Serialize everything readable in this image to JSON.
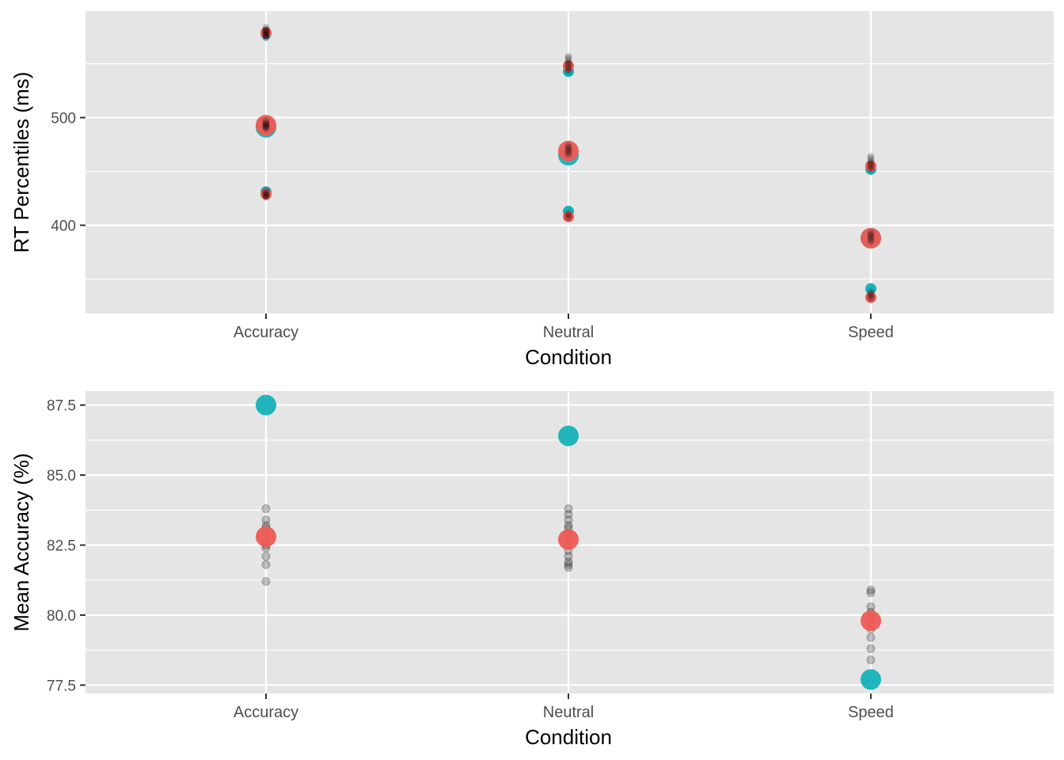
{
  "chart_data": [
    {
      "type": "scatter",
      "xlabel": "Condition",
      "ylabel": "RT Percentiles (ms)",
      "categories": [
        "Accuracy",
        "Neutral",
        "Speed"
      ],
      "ylim": [
        318,
        599
      ],
      "yticks": [
        400,
        500
      ],
      "grid": true,
      "legend": "none",
      "colors": {
        "panel": "#e5e5e5",
        "grid": "#ffffff",
        "teal": "#17b1b8",
        "red": "#ef5a55",
        "black": "#000000"
      },
      "series": [
        {
          "color": "teal",
          "size": "small",
          "points": [
            [
              "Accuracy",
              578
            ],
            [
              "Accuracy",
              431
            ],
            [
              "Neutral",
              543
            ],
            [
              "Neutral",
              413
            ],
            [
              "Speed",
              452
            ],
            [
              "Speed",
              341
            ]
          ]
        },
        {
          "color": "teal",
          "size": "large",
          "points": [
            [
              "Accuracy",
              491
            ],
            [
              "Neutral",
              465
            ],
            [
              "Speed",
              388
            ]
          ]
        },
        {
          "color": "red",
          "size": "large",
          "points": [
            [
              "Accuracy",
              493
            ],
            [
              "Neutral",
              469
            ],
            [
              "Speed",
              388
            ]
          ]
        },
        {
          "color": "red",
          "size": "small",
          "points": [
            [
              "Accuracy",
              579
            ],
            [
              "Accuracy",
              429
            ],
            [
              "Neutral",
              548
            ],
            [
              "Neutral",
              408
            ],
            [
              "Speed",
              455
            ],
            [
              "Speed",
              333
            ]
          ]
        },
        {
          "color": "black",
          "size": "tiny",
          "points": [
            [
              "Accuracy",
              584
            ],
            [
              "Accuracy",
              582
            ],
            [
              "Accuracy",
              581
            ],
            [
              "Accuracy",
              580
            ],
            [
              "Accuracy",
              579
            ],
            [
              "Accuracy",
              578
            ],
            [
              "Accuracy",
              577
            ],
            [
              "Accuracy",
              576
            ],
            [
              "Accuracy",
              575
            ],
            [
              "Accuracy",
              574
            ],
            [
              "Accuracy",
              497
            ],
            [
              "Accuracy",
              495
            ],
            [
              "Accuracy",
              494
            ],
            [
              "Accuracy",
              493
            ],
            [
              "Accuracy",
              492
            ],
            [
              "Accuracy",
              491
            ],
            [
              "Accuracy",
              490
            ],
            [
              "Accuracy",
              432
            ],
            [
              "Accuracy",
              430
            ],
            [
              "Accuracy",
              429
            ],
            [
              "Accuracy",
              428
            ],
            [
              "Accuracy",
              427
            ],
            [
              "Accuracy",
              426
            ],
            [
              "Neutral",
              557
            ],
            [
              "Neutral",
              555
            ],
            [
              "Neutral",
              553
            ],
            [
              "Neutral",
              551
            ],
            [
              "Neutral",
              549
            ],
            [
              "Neutral",
              547
            ],
            [
              "Neutral",
              545
            ],
            [
              "Neutral",
              543
            ],
            [
              "Neutral",
              474
            ],
            [
              "Neutral",
              472
            ],
            [
              "Neutral",
              470
            ],
            [
              "Neutral",
              468
            ],
            [
              "Neutral",
              466
            ],
            [
              "Neutral",
              411
            ],
            [
              "Neutral",
              409
            ],
            [
              "Neutral",
              407
            ],
            [
              "Speed",
              464
            ],
            [
              "Speed",
              462
            ],
            [
              "Speed",
              460
            ],
            [
              "Speed",
              458
            ],
            [
              "Speed",
              456
            ],
            [
              "Speed",
              454
            ],
            [
              "Speed",
              452
            ],
            [
              "Speed",
              393
            ],
            [
              "Speed",
              391
            ],
            [
              "Speed",
              389
            ],
            [
              "Speed",
              387
            ],
            [
              "Speed",
              385
            ],
            [
              "Speed",
              338
            ],
            [
              "Speed",
              336
            ],
            [
              "Speed",
              334
            ],
            [
              "Speed",
              332
            ]
          ]
        }
      ]
    },
    {
      "type": "scatter",
      "xlabel": "Condition",
      "ylabel": "Mean Accuracy (%)",
      "categories": [
        "Accuracy",
        "Neutral",
        "Speed"
      ],
      "ylim": [
        77.2,
        88.0
      ],
      "yticks": [
        77.5,
        80.0,
        82.5,
        85.0,
        87.5
      ],
      "yticklabels": [
        "77.5",
        "80.0",
        "82.5",
        "85.0",
        "87.5"
      ],
      "grid": true,
      "legend": "none",
      "colors": {
        "panel": "#e5e5e5",
        "grid": "#ffffff",
        "teal": "#17b1b8",
        "red": "#ef5a55",
        "black": "#000000"
      },
      "series": [
        {
          "color": "black",
          "size": "medium",
          "points": [
            [
              "Accuracy",
              83.8
            ],
            [
              "Accuracy",
              83.4
            ],
            [
              "Accuracy",
              83.2
            ],
            [
              "Accuracy",
              83.1
            ],
            [
              "Accuracy",
              82.9
            ],
            [
              "Accuracy",
              82.6
            ],
            [
              "Accuracy",
              82.5
            ],
            [
              "Accuracy",
              82.4
            ],
            [
              "Accuracy",
              82.1
            ],
            [
              "Accuracy",
              81.8
            ],
            [
              "Accuracy",
              81.2
            ],
            [
              "Neutral",
              83.8
            ],
            [
              "Neutral",
              83.6
            ],
            [
              "Neutral",
              83.4
            ],
            [
              "Neutral",
              83.2
            ],
            [
              "Neutral",
              83.1
            ],
            [
              "Neutral",
              82.9
            ],
            [
              "Neutral",
              82.7
            ],
            [
              "Neutral",
              82.5
            ],
            [
              "Neutral",
              82.3
            ],
            [
              "Neutral",
              82.1
            ],
            [
              "Neutral",
              81.9
            ],
            [
              "Neutral",
              81.8
            ],
            [
              "Neutral",
              81.7
            ],
            [
              "Speed",
              80.9
            ],
            [
              "Speed",
              80.8
            ],
            [
              "Speed",
              80.3
            ],
            [
              "Speed",
              80.1
            ],
            [
              "Speed",
              79.9
            ],
            [
              "Speed",
              79.7
            ],
            [
              "Speed",
              79.5
            ],
            [
              "Speed",
              79.2
            ],
            [
              "Speed",
              78.8
            ],
            [
              "Speed",
              78.4
            ]
          ]
        },
        {
          "color": "red",
          "size": "large",
          "points": [
            [
              "Accuracy",
              82.8
            ],
            [
              "Neutral",
              82.7
            ],
            [
              "Speed",
              79.8
            ]
          ]
        },
        {
          "color": "teal",
          "size": "large",
          "points": [
            [
              "Accuracy",
              87.5
            ],
            [
              "Neutral",
              86.4
            ],
            [
              "Speed",
              77.7
            ]
          ]
        }
      ]
    }
  ]
}
